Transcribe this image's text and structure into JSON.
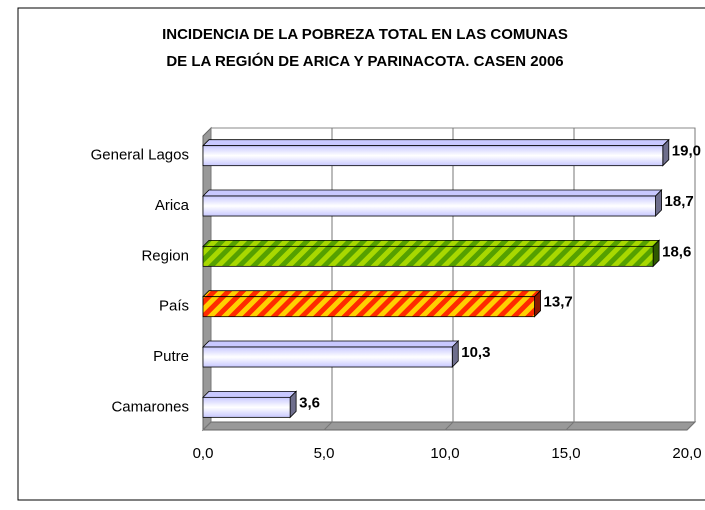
{
  "chart_data": {
    "type": "bar3d_horizontal",
    "title": [
      "INCIDENCIA DE LA POBREZA TOTAL EN LAS COMUNAS",
      "DE LA REGIÓN DE ARICA Y PARINACOTA. CASEN 2006"
    ],
    "categories": [
      "General Lagos",
      "Arica",
      "Region",
      "País",
      "Putre",
      "Camarones"
    ],
    "values": [
      19.0,
      18.7,
      18.6,
      13.7,
      10.3,
      3.6
    ],
    "value_labels": [
      "19,0",
      "18,7",
      "18,6",
      "13,7",
      "10,3",
      "3,6"
    ],
    "colors": [
      "#c8c8ff",
      "#c8c8ff",
      "#55a000",
      "#ff2a00",
      "#c8c8ff",
      "#c8c8ff"
    ],
    "hatch_colors": [
      null,
      null,
      "#a8d800",
      "#ffd000",
      null,
      null
    ],
    "xlim": [
      0,
      20
    ],
    "xticks": [
      {
        "value": 0,
        "label": "0,0"
      },
      {
        "value": 5,
        "label": "5,0"
      },
      {
        "value": 10,
        "label": "10,0"
      },
      {
        "value": 15,
        "label": "15,0"
      },
      {
        "value": 20,
        "label": "20,0"
      }
    ],
    "grid": true
  }
}
